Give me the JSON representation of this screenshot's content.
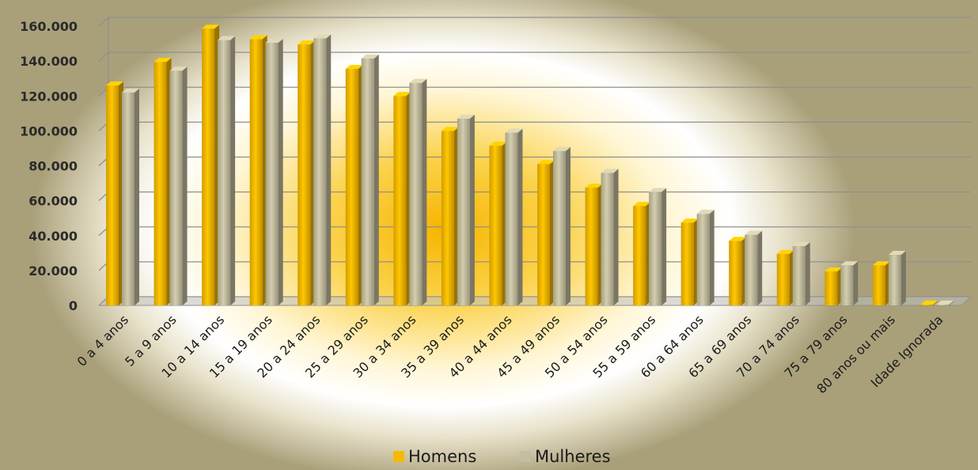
{
  "chart_data": {
    "type": "bar",
    "title": "",
    "xlabel": "",
    "ylabel": "",
    "ylim": [
      0,
      160000
    ],
    "yticks": [
      0,
      20000,
      40000,
      60000,
      80000,
      100000,
      120000,
      140000,
      160000
    ],
    "ytick_labels": [
      "0",
      "20.000",
      "40.000",
      "60.000",
      "80.000",
      "100.000",
      "120.000",
      "140.000",
      "160.000"
    ],
    "grid": true,
    "legend_position": "bottom",
    "categories": [
      "0 a 4 anos",
      "5 a 9 anos",
      "10 a 14 anos",
      "15 a 19 anos",
      "20 a 24 anos",
      "25 a 29 anos",
      "30 a 34 anos",
      "35 a 39 anos",
      "40 a 44 anos",
      "45 a 49 anos",
      "50 a 54 anos",
      "55 a 59 anos",
      "60 a 64 anos",
      "65 a 69 anos",
      "70 a 74 anos",
      "75 a 79 anos",
      "80 anos ou mais",
      "Idade Ignorada"
    ],
    "series": [
      {
        "name": "Homens",
        "color": "#f6b800",
        "values": [
          126000,
          139500,
          158500,
          152500,
          149500,
          135500,
          120000,
          100000,
          91500,
          81000,
          67500,
          57000,
          47500,
          37000,
          29500,
          19500,
          23000,
          500
        ]
      },
      {
        "name": "Mulheres",
        "color": "#c4bea0",
        "values": [
          122000,
          134500,
          152000,
          150500,
          153000,
          141500,
          127500,
          107000,
          99000,
          88500,
          76000,
          65000,
          52500,
          40500,
          34000,
          23000,
          29000,
          500
        ]
      }
    ]
  }
}
